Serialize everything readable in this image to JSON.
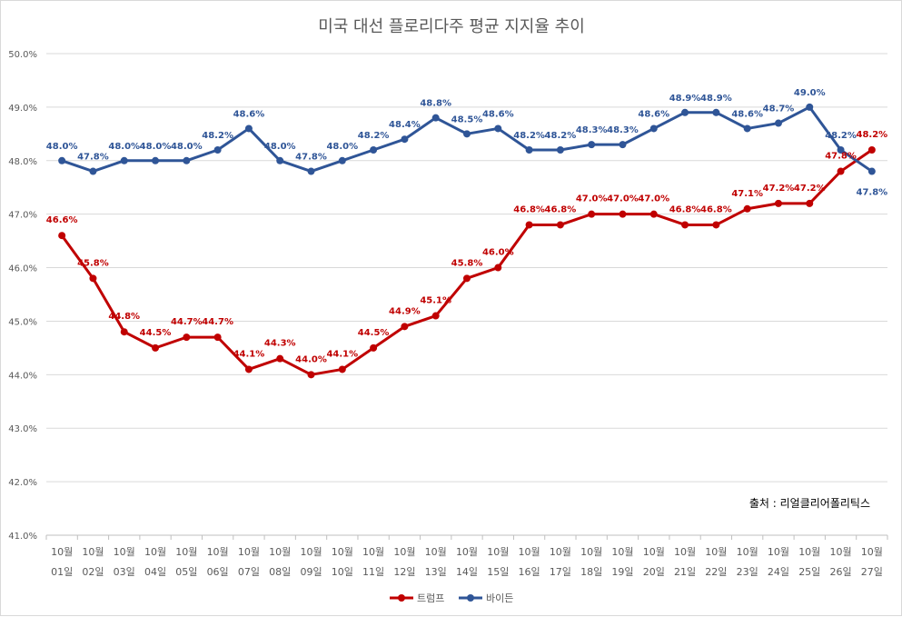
{
  "chart_data": {
    "type": "line",
    "title": "미국 대선 플로리다주 평균 지지율 추이",
    "categories": [
      [
        "10월",
        "01일"
      ],
      [
        "10월",
        "02일"
      ],
      [
        "10월",
        "03일"
      ],
      [
        "10월",
        "04일"
      ],
      [
        "10월",
        "05일"
      ],
      [
        "10월",
        "06일"
      ],
      [
        "10월",
        "07일"
      ],
      [
        "10월",
        "08일"
      ],
      [
        "10월",
        "09일"
      ],
      [
        "10월",
        "10일"
      ],
      [
        "10월",
        "11일"
      ],
      [
        "10월",
        "12일"
      ],
      [
        "10월",
        "13일"
      ],
      [
        "10월",
        "14일"
      ],
      [
        "10월",
        "15일"
      ],
      [
        "10월",
        "16일"
      ],
      [
        "10월",
        "17일"
      ],
      [
        "10월",
        "18일"
      ],
      [
        "10월",
        "19일"
      ],
      [
        "10월",
        "20일"
      ],
      [
        "10월",
        "21일"
      ],
      [
        "10월",
        "22일"
      ],
      [
        "10월",
        "23일"
      ],
      [
        "10월",
        "24일"
      ],
      [
        "10월",
        "25일"
      ],
      [
        "10월",
        "26일"
      ],
      [
        "10월",
        "27일"
      ]
    ],
    "series": [
      {
        "name": "트럼프",
        "color": "#c00000",
        "values": [
          46.6,
          45.8,
          44.8,
          44.5,
          44.7,
          44.7,
          44.1,
          44.3,
          44.0,
          44.1,
          44.5,
          44.9,
          45.1,
          45.8,
          46.0,
          46.8,
          46.8,
          47.0,
          47.0,
          47.0,
          46.8,
          46.8,
          47.1,
          47.2,
          47.2,
          47.8,
          48.2
        ]
      },
      {
        "name": "바이든",
        "color": "#2f5597",
        "values": [
          48.0,
          47.8,
          48.0,
          48.0,
          48.0,
          48.2,
          48.6,
          48.0,
          47.8,
          48.0,
          48.2,
          48.4,
          48.8,
          48.5,
          48.6,
          48.2,
          48.2,
          48.3,
          48.3,
          48.6,
          48.9,
          48.9,
          48.6,
          48.7,
          49.0,
          48.2,
          47.8
        ]
      }
    ],
    "ylim": [
      41.0,
      50.0
    ],
    "yticks": [
      "41.0%",
      "42.0%",
      "43.0%",
      "44.0%",
      "45.0%",
      "46.0%",
      "47.0%",
      "48.0%",
      "49.0%",
      "50.0%"
    ],
    "value_format": "%",
    "grid": true,
    "legend": "bottom",
    "annotation": "출처 : 리얼클리어폴리틱스",
    "xlabel": "",
    "ylabel": ""
  }
}
